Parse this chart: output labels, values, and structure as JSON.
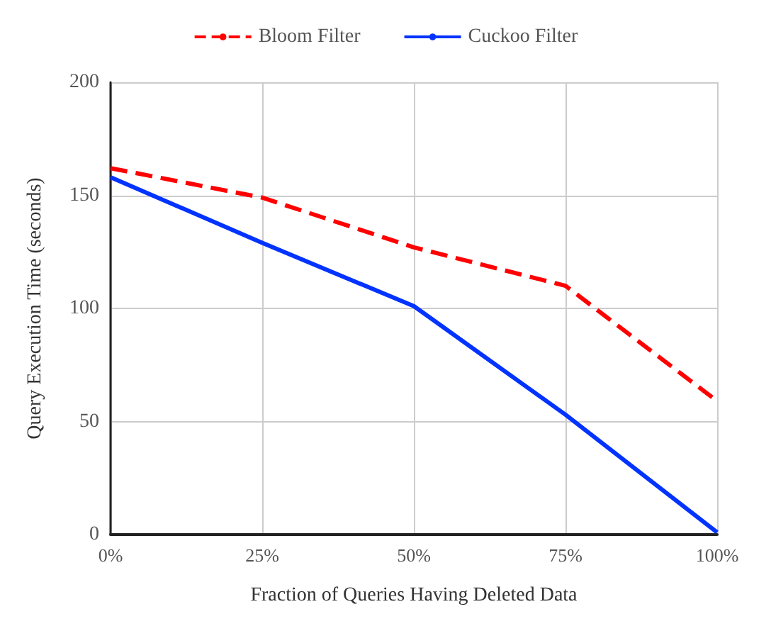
{
  "chart_data": {
    "type": "line",
    "xlabel": "Fraction of Queries Having Deleted Data",
    "ylabel": "Query Execution Time (seconds)",
    "x": [
      0,
      25,
      50,
      75,
      100
    ],
    "series": [
      {
        "name": "Bloom Filter",
        "color": "#ff0000",
        "values": [
          162,
          149,
          127,
          110,
          59
        ],
        "line_style": "dashed"
      },
      {
        "name": "Cuckoo Filter",
        "color": "#0033ff",
        "values": [
          158,
          129,
          101,
          53,
          1
        ],
        "line_style": "solid"
      }
    ],
    "xlim": [
      0,
      100
    ],
    "xticks": [
      {
        "value": 0,
        "label": "0%"
      },
      {
        "value": 25,
        "label": "25%"
      },
      {
        "value": 50,
        "label": "50%"
      },
      {
        "value": 75,
        "label": "75%"
      },
      {
        "value": 100,
        "label": "100%"
      }
    ],
    "ylim": [
      0,
      200
    ],
    "yticks": [
      0,
      50,
      100,
      150,
      200
    ],
    "grid": true,
    "legend": "top",
    "marker": "none"
  }
}
